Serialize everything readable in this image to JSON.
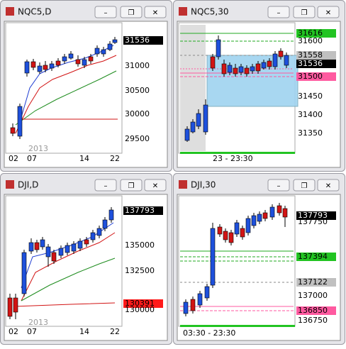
{
  "windows": [
    {
      "title": "NQC5,D",
      "price_labels": [
        "31536",
        "31000",
        "30500",
        "30000",
        "29500"
      ],
      "time_labels": [
        "2013",
        "02",
        "07",
        "14",
        "22"
      ]
    },
    {
      "title": "NQC5,30",
      "price_labels": [
        "31616",
        "31600",
        "31558",
        "31536",
        "31500",
        "31450",
        "31400",
        "31350"
      ],
      "time_labels": [
        "23 - 23:30"
      ]
    },
    {
      "title": "DJI,D",
      "price_labels": [
        "137793",
        "135000",
        "132500",
        "130391",
        "130000"
      ],
      "time_labels": [
        "2013",
        "02",
        "07",
        "14",
        "22"
      ]
    },
    {
      "title": "DJI,30",
      "price_labels": [
        "137793",
        "137750",
        "137394",
        "137122",
        "137000",
        "136850",
        "136750"
      ],
      "time_labels": [
        "03:30 - 23:30"
      ]
    }
  ]
}
